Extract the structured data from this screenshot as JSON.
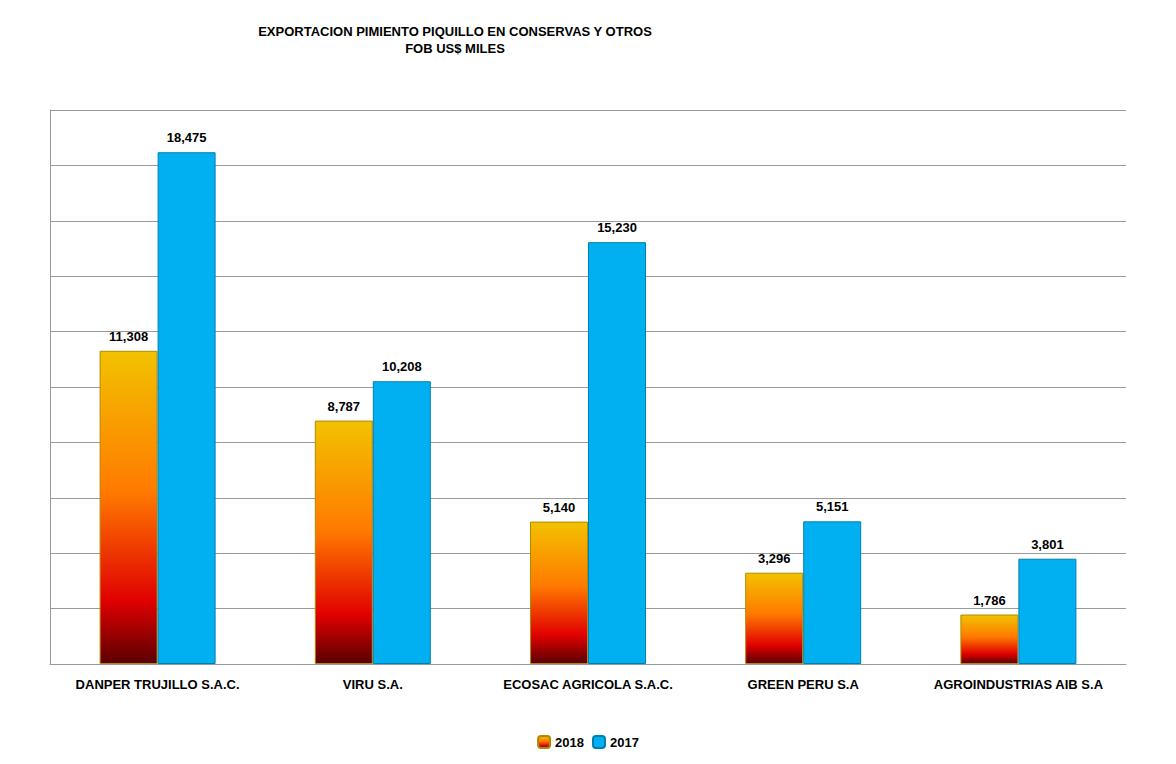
{
  "chart_data": {
    "type": "bar",
    "title": "EXPORTACION PIMIENTO PIQUILLO EN CONSERVAS Y OTROS",
    "subtitle": "FOB US$ MILES",
    "categories": [
      "DANPER TRUJILLO S.A.C.",
      "VIRU S.A.",
      "ECOSAC AGRICOLA S.A.C.",
      "GREEN PERU S.A",
      "AGROINDUSTRIAS AIB S.A"
    ],
    "series": [
      {
        "name": "2018",
        "color": "#f2c200",
        "values": [
          11308,
          8787,
          5140,
          3296,
          1786
        ],
        "value_labels": [
          "11,308",
          "8,787",
          "5,140",
          "3,296",
          "1,786"
        ]
      },
      {
        "name": "2017",
        "color": "#00b0f0",
        "values": [
          18475,
          10208,
          15230,
          5151,
          3801
        ],
        "value_labels": [
          "18,475",
          "10,208",
          "15,230",
          "5,151",
          "3,801"
        ]
      }
    ],
    "ylim": [
      0,
      20000
    ],
    "yticks": [
      0,
      2000,
      4000,
      6000,
      8000,
      10000,
      12000,
      14000,
      16000,
      18000,
      20000
    ],
    "grid": true,
    "tick_labels": "x",
    "data_labels": true,
    "legend": "bottom"
  }
}
